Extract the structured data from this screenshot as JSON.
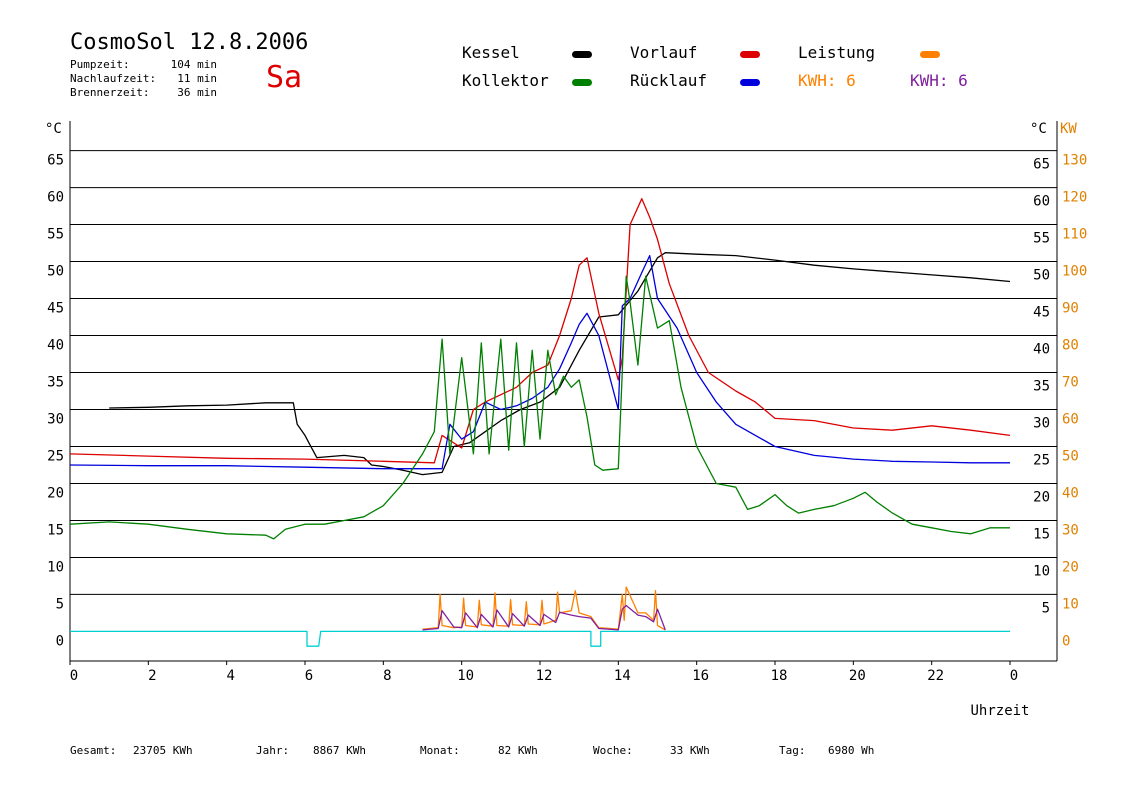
{
  "header": {
    "title": "CosmoSol 12.8.2006",
    "day": "Sa",
    "stats": [
      {
        "label": "Pumpzeit:",
        "value": "104 min"
      },
      {
        "label": "Nachlaufzeit:",
        "value": "11 min"
      },
      {
        "label": "Brennerzeit:",
        "value": "36 min"
      }
    ]
  },
  "legend": {
    "items": [
      {
        "label": "Kessel",
        "color": "#000000"
      },
      {
        "label": "Vorlauf",
        "color": "#dd0000"
      },
      {
        "label": "Leistung",
        "color": "#ff8000"
      },
      {
        "label": "Kollektor",
        "color": "#008000"
      },
      {
        "label": "Rücklauf",
        "color": "#0000dd"
      }
    ],
    "kwh": [
      {
        "label": "KWH: 6",
        "color": "#ff8000"
      },
      {
        "label": "KWH: 6",
        "color": "#8020a0"
      }
    ]
  },
  "footer": [
    {
      "label": "Gesamt:",
      "value": "23705 KWh"
    },
    {
      "label": "Jahr:",
      "value": "8867 KWh"
    },
    {
      "label": "Monat:",
      "value": "82 KWh"
    },
    {
      "label": "Woche:",
      "value": "33 KWh"
    },
    {
      "label": "Tag:",
      "value": "6980 Wh"
    }
  ],
  "chart_data": {
    "type": "line",
    "xlabel": "Uhrzeit",
    "ylabel_left": "°C",
    "ylabel_right_c": "°C",
    "ylabel_right_kw": "KW",
    "xlim": [
      0,
      24
    ],
    "ylim": [
      -4,
      69
    ],
    "xticks": [
      "0",
      "2",
      "4",
      "6",
      "8",
      "10",
      "12",
      "14",
      "16",
      "18",
      "20",
      "22",
      "0"
    ],
    "xtick_values": [
      0,
      2,
      4,
      6,
      8,
      10,
      12,
      14,
      16,
      18,
      20,
      22,
      24
    ],
    "yticks_left": [
      "65",
      "60",
      "55",
      "50",
      "45",
      "40",
      "35",
      "30",
      "25",
      "20",
      "15",
      "10",
      "5",
      "0"
    ],
    "yticks_left_values": [
      65,
      60,
      55,
      50,
      45,
      40,
      35,
      30,
      25,
      20,
      15,
      10,
      5,
      0
    ],
    "yticks_right_c": [
      "65",
      "60",
      "55",
      "50",
      "45",
      "40",
      "35",
      "30",
      "25",
      "20",
      "15",
      "10",
      "5"
    ],
    "yticks_right_c_values": [
      65,
      60,
      55,
      50,
      45,
      40,
      35,
      30,
      25,
      20,
      15,
      10,
      5
    ],
    "yticks_right_kw": [
      "130",
      "120",
      "110",
      "100",
      "90",
      "80",
      "70",
      "60",
      "50",
      "40",
      "30",
      "20",
      "10",
      "0"
    ],
    "yticks_right_kw_values": [
      65,
      60,
      55,
      50,
      45,
      40,
      35,
      30,
      25,
      20,
      15,
      10,
      5,
      0
    ],
    "gridlines": [
      65,
      60,
      55,
      50,
      45,
      40,
      35,
      30,
      25,
      20,
      15,
      10,
      5
    ],
    "series": [
      {
        "name": "Kessel",
        "color": "#000000",
        "x": [
          1.0,
          2.0,
          3.0,
          4.0,
          5.0,
          5.7,
          5.8,
          6.0,
          6.1,
          6.3,
          7.0,
          7.5,
          7.7,
          8.0,
          8.5,
          9.0,
          9.5,
          9.8,
          10.2,
          10.6,
          11.0,
          11.5,
          12.0,
          12.5,
          13.0,
          13.5,
          14.0,
          14.5,
          15.0,
          15.2,
          16.0,
          17.0,
          18.0,
          19.0,
          20.0,
          21.0,
          22.0,
          23.0,
          24.0
        ],
        "y": [
          30.2,
          30.3,
          30.5,
          30.6,
          30.9,
          30.9,
          28.0,
          26.5,
          25.5,
          23.5,
          23.8,
          23.5,
          22.5,
          22.3,
          21.8,
          21.2,
          21.5,
          25.0,
          25.5,
          27.0,
          28.5,
          30.0,
          31.0,
          33.0,
          38.0,
          42.5,
          42.8,
          46.0,
          50.5,
          51.2,
          51.0,
          50.8,
          50.2,
          49.5,
          49.0,
          48.6,
          48.2,
          47.8,
          47.3
        ]
      },
      {
        "name": "Vorlauf",
        "color": "#dd0000",
        "x": [
          0.0,
          2.0,
          4.0,
          6.0,
          8.0,
          9.3,
          9.5,
          10.0,
          10.3,
          10.6,
          11.0,
          11.4,
          11.8,
          12.2,
          12.5,
          12.8,
          13.0,
          13.2,
          13.5,
          14.0,
          14.1,
          14.3,
          14.6,
          14.8,
          15.0,
          15.3,
          15.8,
          16.3,
          17.0,
          17.5,
          18.0,
          19.0,
          20.0,
          21.0,
          22.0,
          23.0,
          24.0
        ],
        "y": [
          24.0,
          23.7,
          23.4,
          23.3,
          23.0,
          22.8,
          26.5,
          24.8,
          30.0,
          31.0,
          32.0,
          33.0,
          35.0,
          36.0,
          40.0,
          45.0,
          49.5,
          50.5,
          43.0,
          34.0,
          37.0,
          55.0,
          58.5,
          56.0,
          53.0,
          47.0,
          40.0,
          35.0,
          32.5,
          31.0,
          28.8,
          28.5,
          27.5,
          27.2,
          27.8,
          27.2,
          26.5
        ]
      },
      {
        "name": "Rücklauf",
        "color": "#0000dd",
        "x": [
          0.0,
          2.0,
          4.0,
          6.0,
          8.0,
          9.5,
          9.7,
          10.0,
          10.3,
          10.6,
          11.0,
          11.4,
          11.8,
          12.2,
          12.5,
          12.8,
          13.0,
          13.2,
          13.5,
          14.0,
          14.1,
          14.3,
          14.6,
          14.8,
          15.0,
          15.5,
          16.0,
          16.5,
          17.0,
          17.5,
          18.0,
          19.0,
          20.0,
          21.0,
          22.0,
          23.0,
          24.0
        ],
        "y": [
          22.5,
          22.4,
          22.4,
          22.2,
          22.0,
          22.0,
          28.0,
          26.0,
          27.0,
          31.0,
          30.0,
          30.5,
          31.5,
          33.0,
          35.5,
          39.0,
          41.5,
          43.0,
          40.0,
          30.0,
          44.0,
          45.0,
          48.5,
          50.8,
          45.0,
          41.0,
          35.0,
          31.0,
          28.0,
          26.5,
          25.0,
          23.8,
          23.3,
          23.0,
          22.9,
          22.8,
          22.8
        ]
      },
      {
        "name": "Kollektor",
        "color": "#008000",
        "x": [
          0.0,
          1.0,
          2.0,
          3.0,
          4.0,
          5.0,
          5.2,
          5.5,
          6.0,
          6.5,
          7.0,
          7.5,
          8.0,
          8.5,
          9.0,
          9.3,
          9.5,
          9.7,
          10.0,
          10.3,
          10.5,
          10.7,
          11.0,
          11.2,
          11.4,
          11.6,
          11.8,
          12.0,
          12.2,
          12.4,
          12.6,
          12.8,
          13.0,
          13.2,
          13.4,
          13.6,
          14.0,
          14.2,
          14.3,
          14.5,
          14.7,
          15.0,
          15.3,
          15.6,
          16.0,
          16.5,
          17.0,
          17.3,
          17.6,
          18.0,
          18.3,
          18.6,
          19.0,
          19.5,
          20.0,
          20.3,
          20.6,
          21.0,
          21.5,
          22.0,
          22.5,
          23.0,
          23.5,
          24.0
        ],
        "y": [
          14.5,
          14.8,
          14.5,
          13.8,
          13.2,
          13.0,
          12.5,
          13.8,
          14.5,
          14.5,
          15.0,
          15.5,
          17.0,
          20.0,
          24.0,
          27.0,
          39.5,
          24.0,
          37.0,
          24.0,
          39.0,
          24.0,
          39.5,
          24.5,
          39.0,
          25.0,
          38.0,
          26.0,
          38.0,
          32.0,
          34.5,
          33.0,
          34.0,
          29.0,
          22.5,
          21.8,
          22.0,
          48.0,
          44.5,
          36.0,
          48.0,
          41.0,
          42.0,
          33.0,
          25.0,
          20.0,
          19.5,
          16.5,
          17.0,
          18.5,
          17.0,
          16.0,
          16.5,
          17.0,
          18.0,
          18.8,
          17.5,
          16.0,
          14.5,
          14.0,
          13.5,
          13.2,
          14.0,
          14.0
        ]
      },
      {
        "name": "Leistung",
        "color": "#ff8000",
        "x": [
          9.0,
          9.4,
          9.45,
          9.5,
          9.8,
          10.0,
          10.05,
          10.1,
          10.4,
          10.45,
          10.5,
          10.8,
          10.85,
          10.9,
          11.2,
          11.25,
          11.3,
          11.6,
          11.65,
          11.7,
          12.0,
          12.05,
          12.1,
          12.4,
          12.45,
          12.5,
          12.8,
          12.9,
          13.0,
          13.3,
          13.5,
          14.0,
          14.1,
          14.15,
          14.2,
          14.5,
          14.7,
          14.9,
          14.95,
          15.0,
          15.2
        ],
        "y": [
          0.3,
          0.5,
          5.0,
          0.8,
          0.5,
          0.6,
          4.5,
          0.8,
          0.6,
          4.2,
          0.9,
          0.7,
          5.2,
          0.8,
          0.7,
          4.3,
          0.9,
          0.8,
          4.0,
          1.0,
          0.9,
          4.2,
          1.0,
          1.5,
          5.3,
          2.5,
          2.8,
          5.5,
          2.5,
          2.0,
          0.5,
          0.3,
          5.0,
          1.5,
          6.0,
          2.5,
          2.5,
          1.5,
          5.5,
          0.8,
          0.2
        ]
      },
      {
        "name": "KWH",
        "color": "#8020a0",
        "x": [
          9.0,
          9.4,
          9.5,
          9.8,
          10.0,
          10.1,
          10.4,
          10.5,
          10.8,
          10.9,
          11.2,
          11.3,
          11.6,
          11.7,
          12.0,
          12.1,
          12.4,
          12.5,
          12.8,
          13.0,
          13.3,
          13.5,
          14.0,
          14.1,
          14.2,
          14.5,
          14.7,
          14.9,
          15.0,
          15.2
        ],
        "y": [
          0.2,
          0.4,
          2.8,
          0.6,
          0.5,
          2.5,
          0.5,
          2.3,
          0.6,
          2.9,
          0.6,
          2.4,
          0.7,
          2.2,
          0.8,
          2.3,
          1.2,
          2.6,
          2.2,
          2.0,
          1.8,
          0.4,
          0.2,
          3.0,
          3.5,
          2.2,
          2.0,
          1.3,
          3.0,
          0.2
        ]
      },
      {
        "name": "Brenner",
        "color": "#00d0d0",
        "x": [
          0.0,
          6.05,
          6.05,
          6.35,
          6.4,
          6.4,
          13.3,
          13.3,
          13.55,
          13.55,
          24.0
        ],
        "y": [
          0.0,
          0.0,
          -2.0,
          -2.0,
          0.0,
          0.0,
          0.0,
          -2.0,
          -2.0,
          0.0,
          0.0
        ]
      }
    ]
  }
}
